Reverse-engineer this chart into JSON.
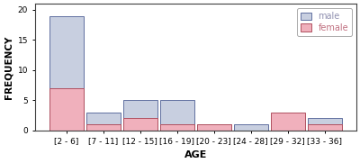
{
  "categories": [
    "[2 - 6]",
    "[7 - 11]",
    "[12 - 15]",
    "[16 - 19]",
    "[20 - 23]",
    "[24 - 28]",
    "[29 - 32]",
    "[33 - 36]"
  ],
  "male": [
    19,
    3,
    5,
    5,
    1,
    1,
    0,
    2
  ],
  "female": [
    7,
    1,
    2,
    1,
    1,
    0,
    3,
    1
  ],
  "male_color": "#c8cfe0",
  "female_color": "#f0b0bc",
  "male_edge": "#6070a0",
  "female_edge": "#b05060",
  "xlabel": "AGE",
  "ylabel": "FREQUENCY",
  "ylim": [
    0,
    21
  ],
  "yticks": [
    0,
    5,
    10,
    15,
    20
  ],
  "legend_labels": [
    "male",
    "female"
  ],
  "male_legend_color": "#9090b0",
  "female_legend_color": "#c07080",
  "background_color": "#ffffff",
  "bar_width": 0.92,
  "figsize": [
    4.0,
    1.81
  ],
  "dpi": 100
}
